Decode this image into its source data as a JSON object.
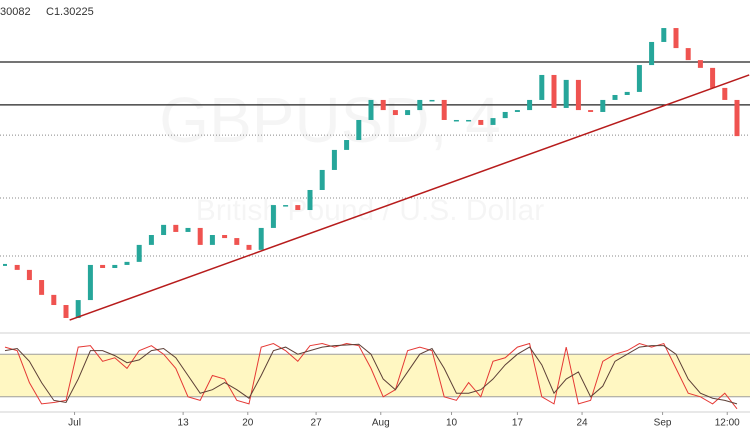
{
  "chart_data": {
    "type": "candlestick",
    "header": [
      "30082",
      "C1.30225"
    ],
    "watermark": "GBPUSD, 4",
    "watermark_subtitle": "British Pound / U.S. Dollar",
    "ylim": [
      1.22,
      1.36
    ],
    "close": [
      1.2476,
      1.2455,
      1.2412,
      1.2349,
      1.2306,
      1.2251,
      1.2327,
      1.2476,
      1.2463,
      1.2476,
      1.2489,
      1.2561,
      1.2603,
      1.2646,
      1.2616,
      1.2633,
      1.2561,
      1.2603,
      1.259,
      1.2561,
      1.254,
      1.2633,
      1.273,
      1.273,
      1.2709,
      1.2794,
      1.2879,
      1.2964,
      1.3006,
      1.3091,
      1.3176,
      1.3133,
      1.3112,
      1.3133,
      1.3176,
      1.3176,
      1.3091,
      1.3091,
      1.3091,
      1.307,
      1.3099,
      1.3125,
      1.3133,
      1.3176,
      1.3282,
      1.3142,
      1.3261,
      1.3133,
      1.3125,
      1.3176,
      1.3197,
      1.321,
      1.3324,
      1.3422,
      1.3481,
      1.3396,
      1.3345,
      1.3312,
      1.3227,
      1.3176,
      1.30225
    ],
    "up_color": "#26a69a",
    "down_color": "#ef5350",
    "hlines": [
      1.3337,
      1.3155
    ],
    "dotted_lines": [
      1.3027,
      1.276,
      1.2514
    ],
    "trendline": {
      "x": [
        5.3,
        61
      ],
      "y": [
        1.2242,
        1.3282
      ],
      "color": "#b71c1c"
    },
    "xticks": [
      {
        "value": 5.7,
        "label": "Jul"
      },
      {
        "value": 14.6,
        "label": "13"
      },
      {
        "value": 19.9,
        "label": "20"
      },
      {
        "value": 25.5,
        "label": "27"
      },
      {
        "value": 30.8,
        "label": "Aug"
      },
      {
        "value": 36.6,
        "label": "10"
      },
      {
        "value": 42,
        "label": "17"
      },
      {
        "value": 47.3,
        "label": "24"
      },
      {
        "value": 53.9,
        "label": "Sep"
      },
      {
        "value": 59.2,
        "label": "12:00"
      }
    ],
    "stochastic": {
      "ylim": [
        0,
        100
      ],
      "band": [
        20,
        80
      ],
      "band_color": "#fff7c2",
      "series": [
        {
          "color": "#e53935",
          "values": [
            90,
            85,
            40,
            10,
            12,
            15,
            90,
            92,
            70,
            75,
            60,
            85,
            92,
            80,
            60,
            20,
            15,
            50,
            45,
            15,
            10,
            90,
            95,
            85,
            70,
            92,
            95,
            90,
            95,
            92,
            60,
            20,
            30,
            85,
            90,
            85,
            20,
            15,
            40,
            20,
            70,
            75,
            90,
            95,
            20,
            10,
            90,
            10,
            15,
            70,
            80,
            85,
            95,
            90,
            95,
            60,
            25,
            20,
            10,
            25,
            3
          ]
        },
        {
          "color": "#5d4037",
          "values": [
            85,
            88,
            70,
            40,
            15,
            12,
            45,
            85,
            85,
            78,
            68,
            72,
            85,
            88,
            75,
            50,
            25,
            30,
            40,
            30,
            18,
            50,
            85,
            90,
            80,
            85,
            90,
            92,
            93,
            94,
            80,
            45,
            30,
            55,
            80,
            88,
            60,
            25,
            25,
            30,
            45,
            65,
            80,
            90,
            65,
            25,
            45,
            55,
            20,
            35,
            70,
            80,
            90,
            92,
            92,
            80,
            45,
            25,
            18,
            15,
            10
          ]
        }
      ]
    }
  }
}
